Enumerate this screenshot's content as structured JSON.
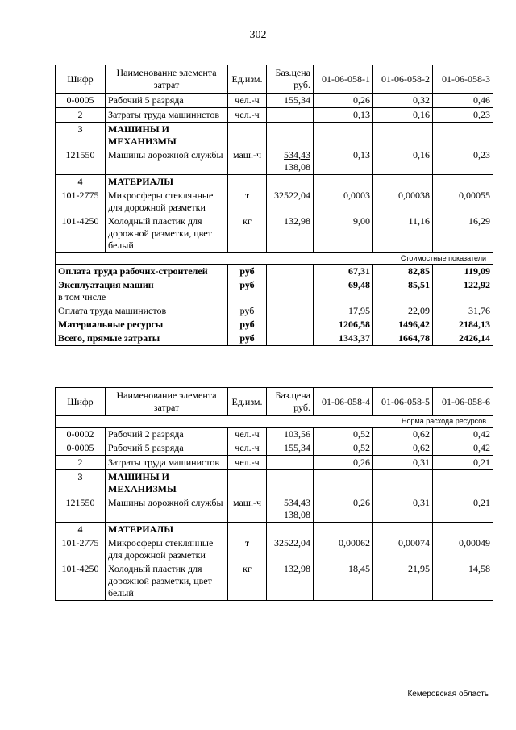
{
  "page_number": "302",
  "header": [
    "Шифр",
    "Наименование элемента затрат",
    "Ед.изм.",
    "Баз.цена руб.",
    "01-06-058-1",
    "01-06-058-2",
    "01-06-058-3"
  ],
  "table1": {
    "header": [
      "Шифр",
      "Наименование элемента затрат",
      "Ед.изм.",
      "Баз.цена руб.",
      "01-06-058-1",
      "01-06-058-2",
      "01-06-058-3"
    ],
    "rows": [
      {
        "cells": [
          "0-0005",
          "Рабочий 5 разряда",
          "чел.-ч",
          "155,34",
          "0,26",
          "0,32",
          "0,46"
        ]
      },
      {
        "cells": [
          "2",
          "Затраты труда машинистов",
          "чел.-ч",
          "",
          "0,13",
          "0,16",
          "0,23"
        ]
      },
      {
        "cells": [
          "3",
          "МАШИНЫ И МЕХАНИЗМЫ",
          "",
          "",
          "",
          "",
          ""
        ],
        "bold": true,
        "joined_below": true
      },
      {
        "cells": [
          "121550",
          "Машины дорожной службы",
          "маш.-ч",
          [
            "534,43",
            "138,08"
          ],
          "0,13",
          "0,16",
          "0,23"
        ]
      },
      {
        "cells": [
          "4",
          "МАТЕРИАЛЫ",
          "",
          "",
          "",
          "",
          ""
        ],
        "bold": true,
        "joined_below": true
      },
      {
        "cells": [
          "101-2775",
          "Микросферы стеклянные для дорожной разметки",
          "т",
          "32522,04",
          "0,0003",
          "0,00038",
          "0,00055"
        ],
        "joined_below": true
      },
      {
        "cells": [
          "101-4250",
          "Холодный пластик для дорожной разметки, цвет белый",
          "кг",
          "132,98",
          "9,00",
          "11,16",
          "16,29"
        ]
      }
    ],
    "section_label": "Стоимостные показатели",
    "summary": [
      {
        "label": "Оплата труда рабочих-строителей",
        "unit": "руб",
        "values": [
          "67,31",
          "82,85",
          "119,09"
        ],
        "bold": true
      },
      {
        "label": "Эксплуатация машин",
        "sub": "в том числе",
        "unit": "руб",
        "values": [
          "69,48",
          "85,51",
          "122,92"
        ],
        "bold": true
      },
      {
        "label": "Оплата труда машинистов",
        "unit": "руб",
        "values": [
          "17,95",
          "22,09",
          "31,76"
        ]
      },
      {
        "label": "Материальные ресурсы",
        "unit": "руб",
        "values": [
          "1206,58",
          "1496,42",
          "2184,13"
        ],
        "bold": true
      },
      {
        "label": "Всего, прямые затраты",
        "unit": "руб",
        "values": [
          "1343,37",
          "1664,78",
          "2426,14"
        ],
        "bold": true
      }
    ]
  },
  "table2": {
    "header": [
      "Шифр",
      "Наименование элемента затрат",
      "Ед.изм.",
      "Баз.цена руб.",
      "01-06-058-4",
      "01-06-058-5",
      "01-06-058-6"
    ],
    "section_label": "Норма расхода ресурсов",
    "rows": [
      {
        "cells": [
          "0-0002",
          "Рабочий 2 разряда",
          "чел.-ч",
          "103,56",
          "0,52",
          "0,62",
          "0,42"
        ],
        "joined_below": true
      },
      {
        "cells": [
          "0-0005",
          "Рабочий 5 разряда",
          "чел.-ч",
          "155,34",
          "0,52",
          "0,62",
          "0,42"
        ]
      },
      {
        "cells": [
          "2",
          "Затраты труда машинистов",
          "чел.-ч",
          "",
          "0,26",
          "0,31",
          "0,21"
        ]
      },
      {
        "cells": [
          "3",
          "МАШИНЫ И МЕХАНИЗМЫ",
          "",
          "",
          "",
          "",
          ""
        ],
        "bold": true,
        "joined_below": true
      },
      {
        "cells": [
          "121550",
          "Машины дорожной службы",
          "маш.-ч",
          [
            "534,43",
            "138,08"
          ],
          "0,26",
          "0,31",
          "0,21"
        ]
      },
      {
        "cells": [
          "4",
          "МАТЕРИАЛЫ",
          "",
          "",
          "",
          "",
          ""
        ],
        "bold": true,
        "joined_below": true
      },
      {
        "cells": [
          "101-2775",
          "Микросферы стеклянные для дорожной разметки",
          "т",
          "32522,04",
          "0,00062",
          "0,00074",
          "0,00049"
        ],
        "joined_below": true
      },
      {
        "cells": [
          "101-4250",
          "Холодный пластик для дорожной разметки, цвет белый",
          "кг",
          "132,98",
          "18,45",
          "21,95",
          "14,58"
        ]
      }
    ]
  },
  "footer": "Кемеровская область"
}
